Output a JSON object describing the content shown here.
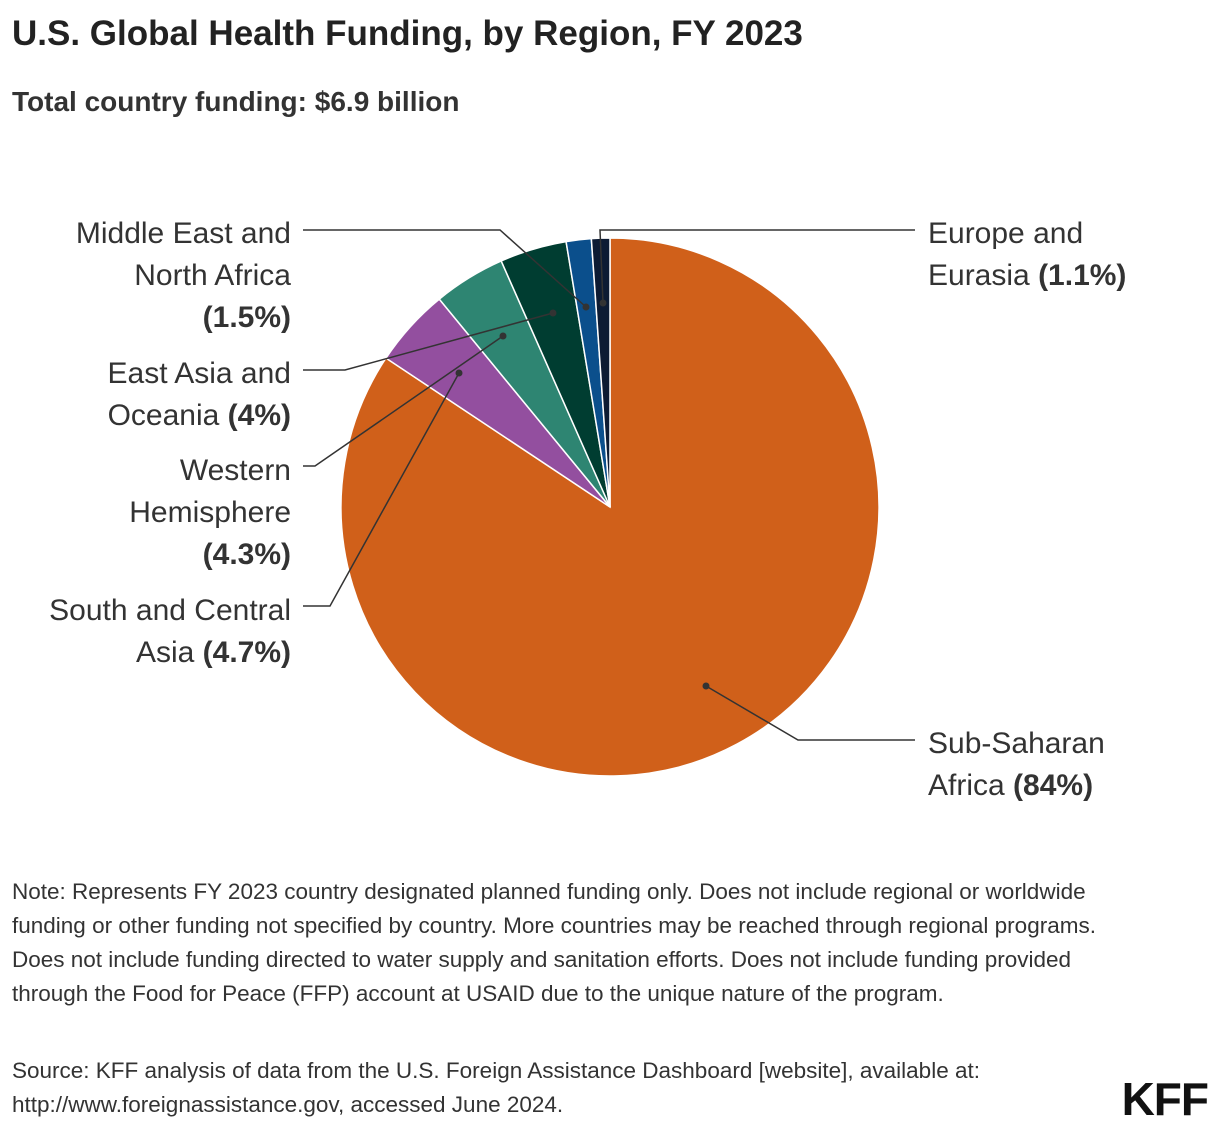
{
  "chart_data": {
    "type": "pie",
    "title": "U.S. Global Health Funding, by Region, FY 2023",
    "subtitle": "Total country funding: $6.9 billion",
    "categories": [
      "Sub-Saharan Africa",
      "South and Central Asia",
      "Western Hemisphere",
      "East Asia and Oceania",
      "Middle East and North Africa",
      "Europe and Eurasia"
    ],
    "values": [
      84,
      4.7,
      4.3,
      4,
      1.5,
      1.1
    ],
    "value_labels": [
      "(84%)",
      "(4.7%)",
      "(4.3%)",
      "(4%)",
      "(1.5%)",
      "(1.1%)"
    ],
    "colors": [
      "#d0601a",
      "#934f9f",
      "#2e8572",
      "#003d31",
      "#0b4f8c",
      "#0d1b33"
    ],
    "note": "Note: Represents FY 2023 country designated planned funding only. Does not include regional or worldwide funding or other funding not specified by country. More countries may be reached through regional programs. Does not include funding directed to water supply and sanitation efforts. Does not include funding provided through the Food for Peace (FFP) account at USAID due to the unique nature of the program.",
    "source": "Source: KFF analysis of data from the U.S. Foreign Assistance Dashboard [website], available at: http://www.foreignassistance.gov, accessed June 2024.",
    "logo": "KFF"
  }
}
